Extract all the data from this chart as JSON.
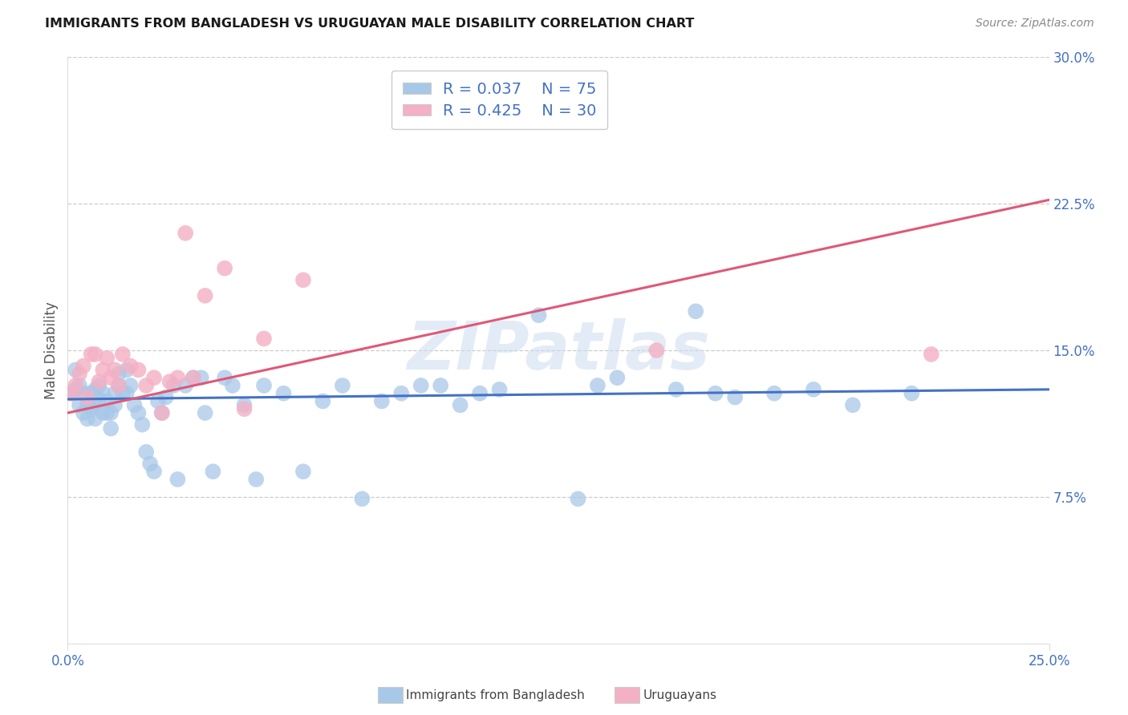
{
  "title": "IMMIGRANTS FROM BANGLADESH VS URUGUAYAN MALE DISABILITY CORRELATION CHART",
  "source": "Source: ZipAtlas.com",
  "ylabel": "Male Disability",
  "xlim": [
    0.0,
    0.25
  ],
  "ylim": [
    0.0,
    0.3
  ],
  "xtick_vals": [
    0.0,
    0.25
  ],
  "xtick_labels": [
    "0.0%",
    "25.0%"
  ],
  "ytick_vals": [
    0.075,
    0.15,
    0.225,
    0.3
  ],
  "ytick_labels": [
    "7.5%",
    "15.0%",
    "22.5%",
    "30.0%"
  ],
  "series1_label": "Immigrants from Bangladesh",
  "series1_color": "#a8c8e8",
  "series1_edge_color": "#a8c8e8",
  "series1_line_color": "#4472c4",
  "series1_R": 0.037,
  "series1_N": 75,
  "series2_label": "Uruguayans",
  "series2_color": "#f4b0c4",
  "series2_edge_color": "#f4b0c4",
  "series2_line_color": "#e05878",
  "series2_R": 0.425,
  "series2_N": 30,
  "watermark": "ZIPatlas",
  "background_color": "#ffffff",
  "grid_color": "#cccccc",
  "tick_color": "#4472c4",
  "title_color": "#1a1a1a",
  "source_color": "#888888",
  "ylabel_color": "#555555",
  "legend_edge_color": "#cccccc",
  "series1_x": [
    0.001,
    0.002,
    0.002,
    0.003,
    0.003,
    0.004,
    0.004,
    0.005,
    0.005,
    0.006,
    0.006,
    0.007,
    0.007,
    0.007,
    0.008,
    0.008,
    0.009,
    0.009,
    0.01,
    0.01,
    0.011,
    0.011,
    0.012,
    0.012,
    0.013,
    0.013,
    0.014,
    0.015,
    0.015,
    0.016,
    0.017,
    0.018,
    0.019,
    0.02,
    0.021,
    0.022,
    0.023,
    0.024,
    0.025,
    0.027,
    0.028,
    0.03,
    0.032,
    0.034,
    0.035,
    0.037,
    0.04,
    0.042,
    0.045,
    0.048,
    0.05,
    0.055,
    0.06,
    0.065,
    0.07,
    0.075,
    0.08,
    0.085,
    0.09,
    0.095,
    0.1,
    0.105,
    0.11,
    0.12,
    0.13,
    0.135,
    0.14,
    0.155,
    0.16,
    0.165,
    0.17,
    0.18,
    0.19,
    0.2,
    0.215
  ],
  "series1_y": [
    0.128,
    0.13,
    0.14,
    0.132,
    0.122,
    0.128,
    0.118,
    0.122,
    0.115,
    0.12,
    0.128,
    0.115,
    0.122,
    0.13,
    0.125,
    0.132,
    0.128,
    0.118,
    0.118,
    0.124,
    0.11,
    0.118,
    0.122,
    0.128,
    0.132,
    0.138,
    0.128,
    0.14,
    0.128,
    0.132,
    0.122,
    0.118,
    0.112,
    0.098,
    0.092,
    0.088,
    0.124,
    0.118,
    0.126,
    0.132,
    0.084,
    0.132,
    0.136,
    0.136,
    0.118,
    0.088,
    0.136,
    0.132,
    0.122,
    0.084,
    0.132,
    0.128,
    0.088,
    0.124,
    0.132,
    0.074,
    0.124,
    0.128,
    0.132,
    0.132,
    0.122,
    0.128,
    0.13,
    0.168,
    0.074,
    0.132,
    0.136,
    0.13,
    0.17,
    0.128,
    0.126,
    0.128,
    0.13,
    0.122,
    0.128
  ],
  "series2_x": [
    0.001,
    0.002,
    0.003,
    0.004,
    0.005,
    0.006,
    0.007,
    0.008,
    0.009,
    0.01,
    0.011,
    0.012,
    0.013,
    0.014,
    0.016,
    0.018,
    0.02,
    0.022,
    0.024,
    0.026,
    0.028,
    0.03,
    0.032,
    0.035,
    0.04,
    0.045,
    0.05,
    0.06,
    0.15,
    0.22
  ],
  "series2_y": [
    0.128,
    0.132,
    0.138,
    0.142,
    0.126,
    0.148,
    0.148,
    0.134,
    0.14,
    0.146,
    0.136,
    0.14,
    0.132,
    0.148,
    0.142,
    0.14,
    0.132,
    0.136,
    0.118,
    0.134,
    0.136,
    0.21,
    0.136,
    0.178,
    0.192,
    0.12,
    0.156,
    0.186,
    0.15,
    0.148
  ],
  "line1_x0": 0.0,
  "line1_y0": 0.125,
  "line1_x1": 0.25,
  "line1_y1": 0.13,
  "line2_x0": 0.0,
  "line2_y0": 0.118,
  "line2_x1": 0.25,
  "line2_y1": 0.227
}
